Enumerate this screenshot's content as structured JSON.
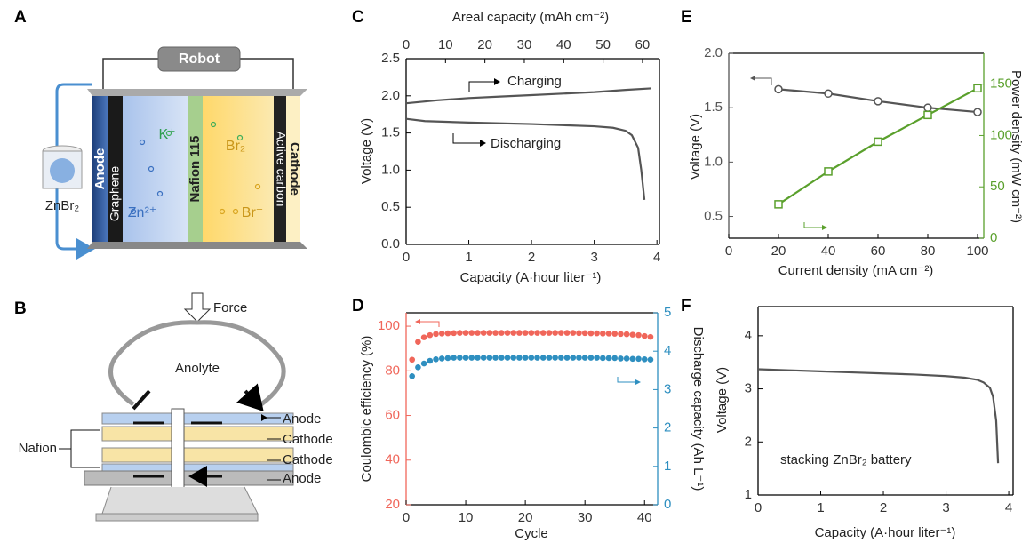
{
  "panels": [
    "A",
    "B",
    "C",
    "D",
    "E",
    "F"
  ],
  "diagram_a": {
    "robot": "Robot",
    "anode": "Anode",
    "graphene": "Graphene",
    "k_ion": "K⁺",
    "membrane": "Nafion 115",
    "br2": "Br₂",
    "br_ion": "Br⁻",
    "zn_ion": "Zn²⁺",
    "cathode": "Cathode",
    "active_carbon": "Active carbon",
    "tank": "ZnBr₂"
  },
  "diagram_b": {
    "force": "Force",
    "anolyte": "Anolyte",
    "labels": [
      "Anode",
      "Cathode",
      "Cathode",
      "Anode"
    ],
    "nafion": "Nafion"
  },
  "chart_data": [
    {
      "type": "line",
      "x_label": "Capacity (A·hour liter⁻¹)",
      "y_label": "Voltage (V)",
      "x2_label": "Areal capacity (mAh cm⁻²)",
      "xlim": [
        0,
        4.04
      ],
      "xticks": [
        0,
        1,
        2,
        3,
        4
      ],
      "x2lim": [
        0,
        64.3
      ],
      "x2ticks": [
        0,
        10,
        20,
        30,
        40,
        50,
        60
      ],
      "ylim": [
        0,
        2.5
      ],
      "yticks": [
        {
          "value": 0,
          "label": "0.0"
        },
        0.5,
        {
          "value": 1,
          "label": "1.0"
        },
        1.5,
        {
          "value": 2,
          "label": "2.0"
        },
        2.5
      ],
      "series": [
        {
          "name": "Charging",
          "color": "#555555",
          "x": [
            0,
            0.5,
            1,
            1.5,
            2,
            2.5,
            3,
            3.5,
            3.9
          ],
          "values": [
            1.9,
            1.94,
            1.97,
            1.99,
            2.01,
            2.03,
            2.05,
            2.08,
            2.1
          ]
        },
        {
          "name": "Discharging",
          "color": "#555555",
          "x": [
            0,
            0.3,
            1,
            2,
            3,
            3.3,
            3.5,
            3.6,
            3.7,
            3.75,
            3.8
          ],
          "values": [
            1.69,
            1.66,
            1.64,
            1.62,
            1.59,
            1.57,
            1.53,
            1.47,
            1.3,
            1.0,
            0.6
          ]
        }
      ]
    },
    {
      "type": "scatter",
      "x_label": "Cycle",
      "y_label": "Coulombic efficiency (%)",
      "y2_label": "Discharge capacity (Ah L⁻¹)",
      "xlim": [
        0,
        42.2
      ],
      "xticks": [
        0,
        10,
        20,
        30,
        40
      ],
      "ylim": [
        20,
        106
      ],
      "yticks": [
        20,
        40,
        60,
        80,
        100
      ],
      "y_color": "#f0665a",
      "y2lim": [
        0,
        5
      ],
      "y2ticks": [
        0,
        1,
        2,
        3,
        4,
        5
      ],
      "y2_color": "#2e8fc0",
      "x": [
        1,
        2,
        3,
        4,
        5,
        6,
        7,
        8,
        9,
        10,
        11,
        12,
        13,
        14,
        15,
        16,
        17,
        18,
        19,
        20,
        21,
        22,
        23,
        24,
        25,
        26,
        27,
        28,
        29,
        30,
        31,
        32,
        33,
        34,
        35,
        36,
        37,
        38,
        39,
        40,
        41
      ],
      "series": [
        {
          "color": "#f0665a",
          "values": [
            85,
            93,
            95,
            96,
            96.5,
            96.7,
            96.8,
            96.9,
            97,
            97,
            97,
            97,
            97,
            97,
            97,
            97,
            97,
            97,
            97,
            97,
            97,
            97,
            97,
            97,
            97,
            97,
            97,
            97,
            96.9,
            96.9,
            96.8,
            96.8,
            96.7,
            96.7,
            96.6,
            96.5,
            96.4,
            96.2,
            96,
            95.6,
            95.2
          ]
        },
        {
          "color": "#2e8fc0",
          "axis": "y2",
          "values": [
            3.35,
            3.58,
            3.68,
            3.75,
            3.79,
            3.81,
            3.82,
            3.83,
            3.83,
            3.83,
            3.83,
            3.83,
            3.83,
            3.83,
            3.83,
            3.83,
            3.83,
            3.83,
            3.83,
            3.83,
            3.83,
            3.83,
            3.83,
            3.83,
            3.83,
            3.83,
            3.83,
            3.83,
            3.83,
            3.83,
            3.83,
            3.83,
            3.82,
            3.82,
            3.82,
            3.81,
            3.81,
            3.8,
            3.8,
            3.79,
            3.78
          ]
        }
      ]
    },
    {
      "type": "line",
      "x_label": "Current density (mA cm⁻²)",
      "y_label": "Voltage (V)",
      "y2_label": "Power density (mW cm⁻²)",
      "xlim": [
        0,
        102.5
      ],
      "xticks": [
        0,
        20,
        40,
        60,
        80,
        100
      ],
      "ylim": [
        0.3,
        2.0
      ],
      "yticks": [
        0.5,
        {
          "value": 1,
          "label": "1.0"
        },
        1.5,
        {
          "value": 2,
          "label": "2.0"
        }
      ],
      "y_color": "#555555",
      "y2lim": [
        0,
        180
      ],
      "y2ticks": [
        0,
        50,
        100,
        150
      ],
      "y2_color": "#5aa02c",
      "x": [
        20,
        40,
        60,
        80,
        100
      ],
      "series": [
        {
          "color": "#555555",
          "marker": "circle",
          "values": [
            1.67,
            1.63,
            1.56,
            1.5,
            1.46
          ]
        },
        {
          "color": "#5aa02c",
          "marker": "square",
          "axis": "y2",
          "values": [
            33,
            65,
            94,
            120,
            146
          ]
        }
      ]
    },
    {
      "type": "line",
      "x_label": "Capacity (A·hour liter⁻¹)",
      "y_label": "Voltage (V)",
      "annotation": "stacking ZnBr₂ battery",
      "xlim": [
        0,
        4.07
      ],
      "xticks": [
        0,
        1,
        2,
        3,
        4
      ],
      "ylim": [
        1,
        4.55
      ],
      "yticks": [
        1,
        2,
        3,
        4
      ],
      "series": [
        {
          "color": "#555555",
          "x": [
            0,
            0.5,
            1,
            1.5,
            2,
            2.5,
            3,
            3.3,
            3.5,
            3.6,
            3.7,
            3.75,
            3.8,
            3.83
          ],
          "values": [
            3.37,
            3.35,
            3.33,
            3.31,
            3.29,
            3.27,
            3.24,
            3.21,
            3.17,
            3.12,
            3.02,
            2.85,
            2.4,
            1.6
          ]
        }
      ]
    }
  ]
}
